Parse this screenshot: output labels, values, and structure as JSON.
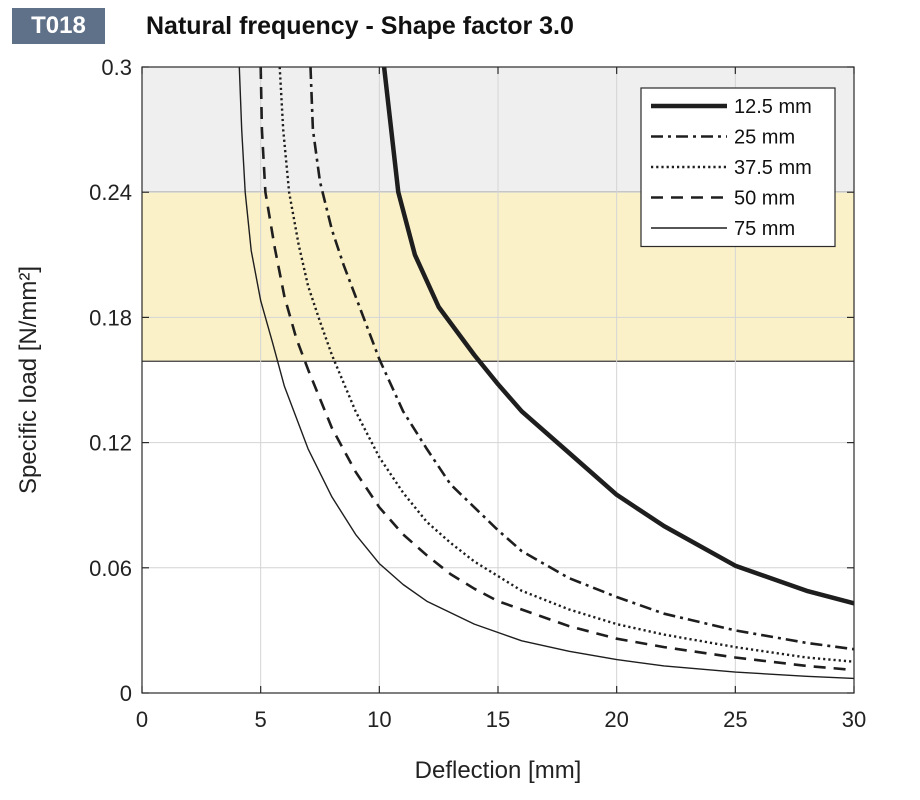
{
  "badge": "T018",
  "title": "Natural frequency - Shape factor 3.0",
  "chart_data": {
    "type": "line",
    "xlabel": "Deflection  [mm]",
    "ylabel": "Specific load [N/mm²]",
    "xlim": [
      0,
      30
    ],
    "ylim": [
      0,
      0.3
    ],
    "xticks": [
      "0",
      "5",
      "10",
      "15",
      "20",
      "25",
      "30"
    ],
    "yticks": [
      "0",
      "0.06",
      "0.12",
      "0.18",
      "0.24",
      "0.3"
    ],
    "grid": true,
    "legend_position": "top-right",
    "bands": [
      {
        "from": 0.24,
        "to": 0.3,
        "color": "#efefef"
      },
      {
        "from": 0.159,
        "to": 0.24,
        "color": "#fbf1c8"
      }
    ],
    "series": [
      {
        "name": "12.5 mm",
        "style": "solid-thick",
        "x": [
          10.2,
          10.5,
          10.8,
          11.5,
          12.5,
          14,
          15,
          16,
          18,
          20,
          22,
          25,
          28,
          30
        ],
        "y": [
          0.3,
          0.27,
          0.24,
          0.21,
          0.185,
          0.162,
          0.148,
          0.135,
          0.115,
          0.095,
          0.08,
          0.061,
          0.049,
          0.043
        ]
      },
      {
        "name": "25 mm",
        "style": "dashdot",
        "x": [
          7.1,
          7.2,
          7.5,
          8,
          8.5,
          9,
          10,
          11,
          12,
          13,
          14,
          15,
          16,
          18,
          20,
          22,
          25,
          28,
          30
        ],
        "y": [
          0.3,
          0.27,
          0.245,
          0.222,
          0.205,
          0.19,
          0.16,
          0.135,
          0.117,
          0.1,
          0.089,
          0.078,
          0.068,
          0.055,
          0.046,
          0.038,
          0.03,
          0.024,
          0.021
        ]
      },
      {
        "name": "37.5 mm",
        "style": "dotted",
        "x": [
          5.8,
          5.95,
          6.2,
          6.6,
          7,
          7.5,
          8,
          9,
          10,
          11,
          12,
          13,
          14,
          15,
          16,
          18,
          20,
          22,
          25,
          28,
          30
        ],
        "y": [
          0.3,
          0.27,
          0.24,
          0.215,
          0.195,
          0.178,
          0.162,
          0.135,
          0.113,
          0.096,
          0.082,
          0.072,
          0.063,
          0.056,
          0.049,
          0.04,
          0.033,
          0.028,
          0.022,
          0.017,
          0.015
        ]
      },
      {
        "name": "50 mm",
        "style": "dashed",
        "x": [
          5.0,
          5.05,
          5.2,
          5.6,
          6,
          6.5,
          7,
          8,
          9,
          10,
          11,
          12,
          13,
          14,
          15,
          16,
          18,
          20,
          22,
          25,
          28,
          30
        ],
        "y": [
          0.3,
          0.27,
          0.24,
          0.213,
          0.19,
          0.17,
          0.155,
          0.127,
          0.106,
          0.089,
          0.076,
          0.066,
          0.057,
          0.05,
          0.044,
          0.04,
          0.032,
          0.026,
          0.022,
          0.017,
          0.013,
          0.011
        ]
      },
      {
        "name": "75 mm",
        "style": "solid-thin",
        "x": [
          4.1,
          4.2,
          4.35,
          4.6,
          5,
          5.5,
          6,
          7,
          8,
          9,
          10,
          11,
          12,
          14,
          16,
          18,
          20,
          22,
          25,
          28,
          30
        ],
        "y": [
          0.3,
          0.27,
          0.24,
          0.212,
          0.188,
          0.168,
          0.147,
          0.117,
          0.094,
          0.076,
          0.062,
          0.052,
          0.044,
          0.033,
          0.025,
          0.02,
          0.016,
          0.013,
          0.01,
          0.008,
          0.007
        ]
      }
    ]
  }
}
